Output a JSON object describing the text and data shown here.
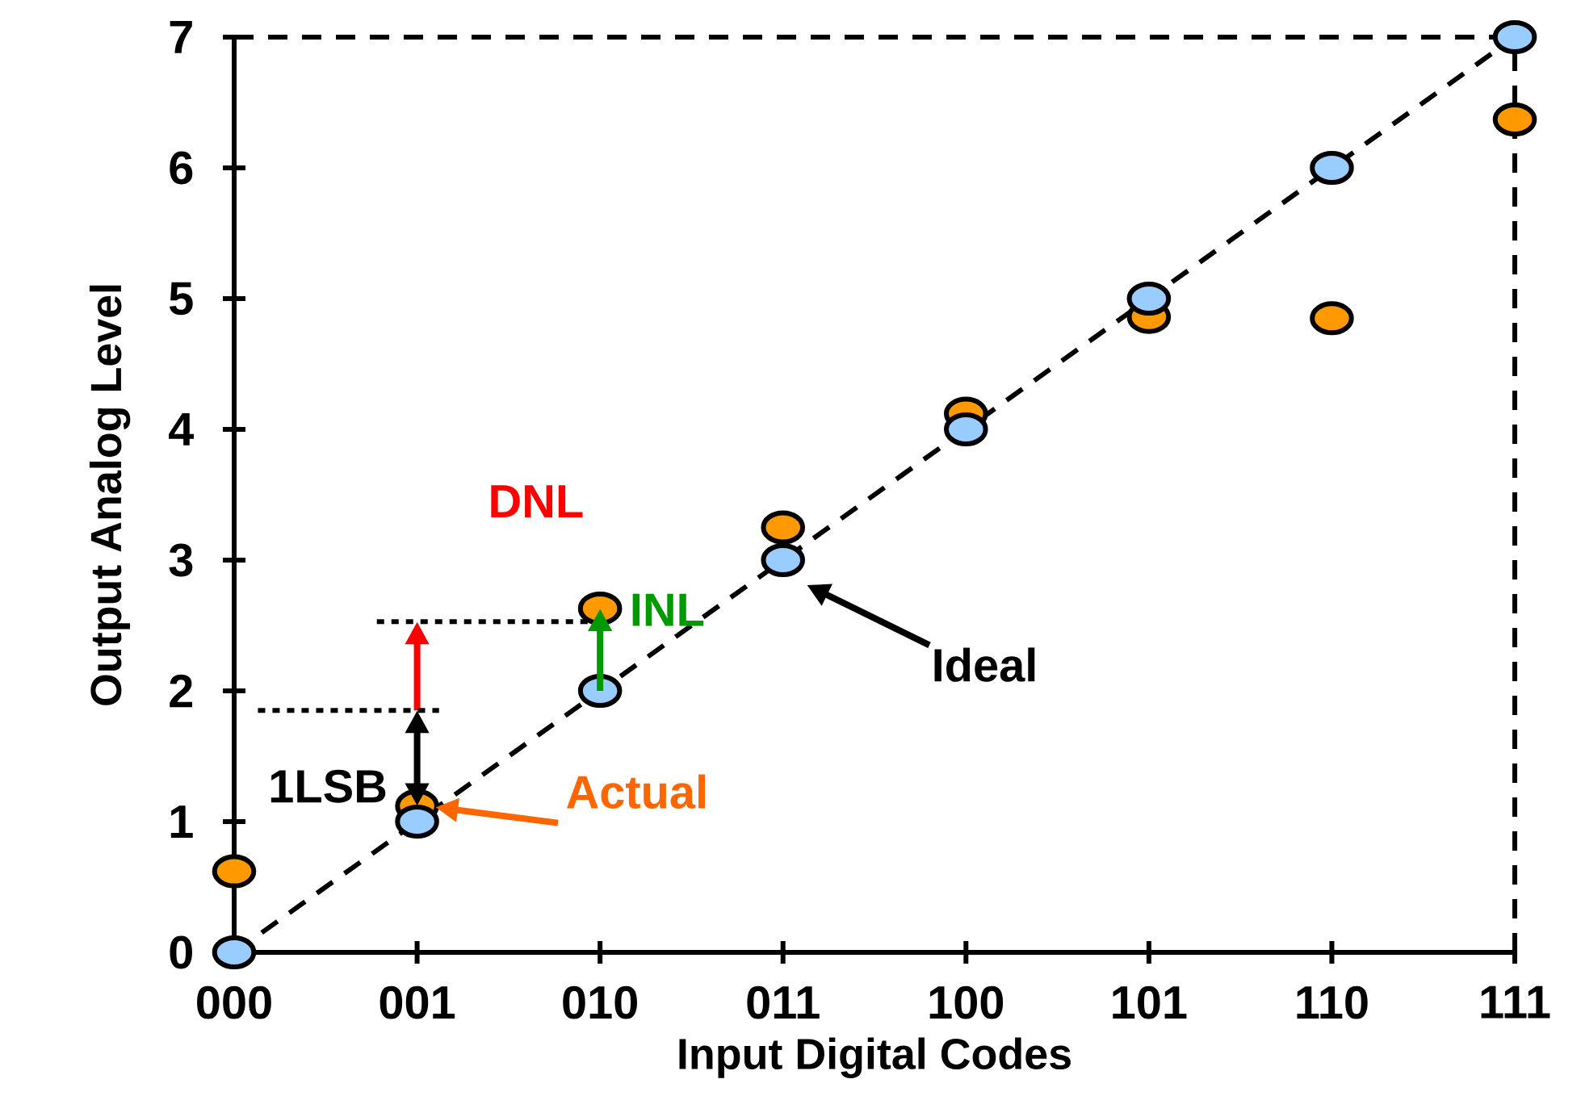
{
  "chart_data": {
    "type": "scatter",
    "xlabel": "Input Digital Codes",
    "ylabel": "Output Analog Level",
    "categories": [
      "000",
      "001",
      "010",
      "011",
      "100",
      "101",
      "110",
      "111"
    ],
    "ylim": [
      0,
      7
    ],
    "yticks": [
      0,
      1,
      2,
      3,
      4,
      5,
      6,
      7
    ],
    "grid": false,
    "series": [
      {
        "type": "line",
        "color": "#000000",
        "line_style": "dashed",
        "marker": "none",
        "values": [
          0,
          1,
          2,
          3,
          4,
          5,
          6,
          7
        ]
      },
      {
        "color": "#ff9900",
        "marker": "circle",
        "values": [
          0.62,
          1.12,
          2.63,
          3.25,
          4.12,
          4.86,
          4.85,
          6.37
        ]
      },
      {
        "color": "#99ccff",
        "marker": "circle",
        "values": [
          0,
          1,
          2,
          3,
          4,
          5,
          6,
          7
        ]
      }
    ],
    "ref_lines": [
      {
        "axis": "y",
        "value": 7,
        "line_style": "dashed",
        "color": "#000000"
      },
      {
        "axis": "x",
        "value": "111",
        "line_style": "dashed",
        "color": "#000000"
      }
    ],
    "annotations": [
      "DNL",
      {
        "text": "INL",
        "x": "010",
        "y": 2.63
      },
      "1LSB",
      "Actual",
      "Ideal"
    ]
  }
}
